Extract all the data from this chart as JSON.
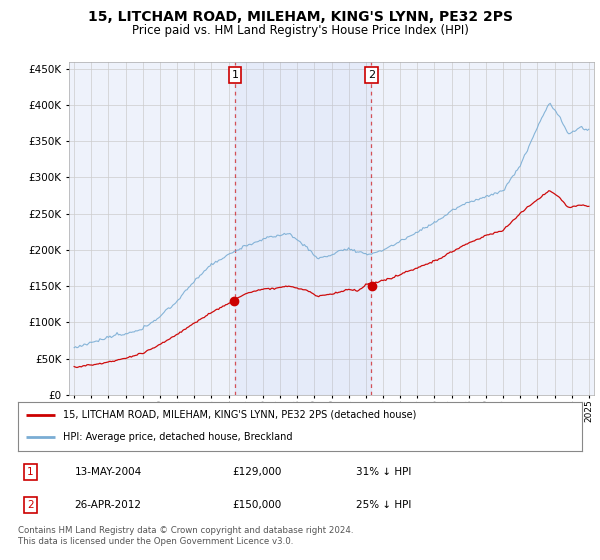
{
  "title": "15, LITCHAM ROAD, MILEHAM, KING'S LYNN, PE32 2PS",
  "subtitle": "Price paid vs. HM Land Registry's House Price Index (HPI)",
  "title_fontsize": 10,
  "subtitle_fontsize": 8.5,
  "legend_line1": "15, LITCHAM ROAD, MILEHAM, KING'S LYNN, PE32 2PS (detached house)",
  "legend_line2": "HPI: Average price, detached house, Breckland",
  "sale1_date": "13-MAY-2004",
  "sale1_price": "£129,000",
  "sale1_pct": "31% ↓ HPI",
  "sale2_date": "26-APR-2012",
  "sale2_price": "£150,000",
  "sale2_pct": "25% ↓ HPI",
  "footer": "Contains HM Land Registry data © Crown copyright and database right 2024.\nThis data is licensed under the Open Government Licence v3.0.",
  "red_color": "#cc0000",
  "blue_color": "#7aadd4",
  "bg_color": "#ffffff",
  "plot_bg": "#eef2fb",
  "grid_color": "#cccccc",
  "vline_color": "#cc0000",
  "sale1_x": 2004.37,
  "sale2_x": 2012.32,
  "ylim_min": 0,
  "ylim_max": 460000,
  "xlim_min": 1994.7,
  "xlim_max": 2025.3
}
